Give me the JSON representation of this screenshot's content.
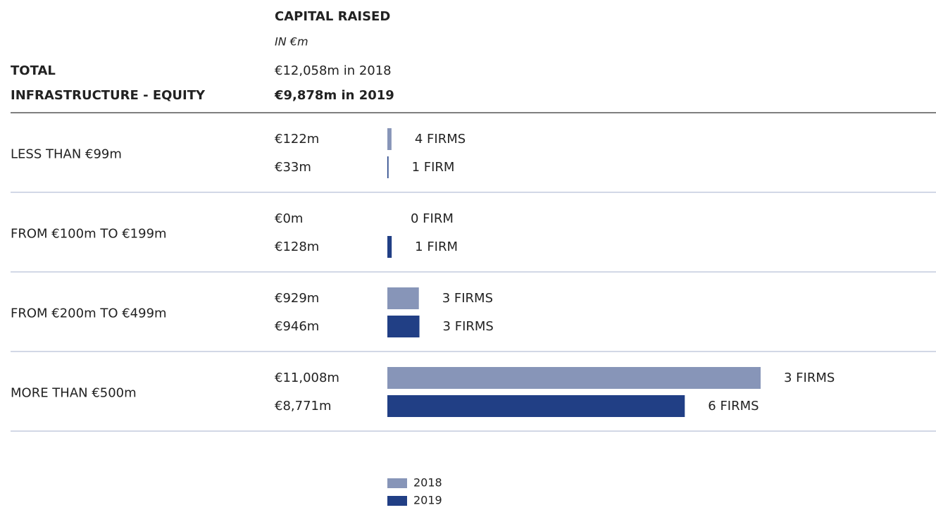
{
  "chart_data": {
    "type": "bar",
    "title": "CAPITAL RAISED",
    "subtitle": "IN €m",
    "heading": [
      "TOTAL",
      "INFRASTRUCTURE - EQUITY"
    ],
    "totals": [
      "€12,058m in 2018",
      "€9,878m in 2019"
    ],
    "categories": [
      "LESS THAN €99m",
      "FROM €100m TO €199m",
      "FROM €200m TO €499m",
      "MORE THAN €500m"
    ],
    "series": [
      {
        "name": "2018",
        "color": "#8795b8",
        "values": [
          122,
          0,
          929,
          11008
        ],
        "value_labels": [
          "€122m",
          "€0m",
          "€929m",
          "€11,008m"
        ],
        "firm_labels": [
          "4 FIRMS",
          "0 FIRM",
          "3 FIRMS",
          "3 FIRMS"
        ]
      },
      {
        "name": "2019",
        "color": "#213f85",
        "values": [
          33,
          128,
          946,
          8771
        ],
        "value_labels": [
          "€33m",
          "€128m",
          "€946m",
          "€8,771m"
        ],
        "firm_labels": [
          "1 FIRM",
          "1 FIRM",
          "3 FIRMS",
          "6 FIRMS"
        ]
      }
    ]
  }
}
